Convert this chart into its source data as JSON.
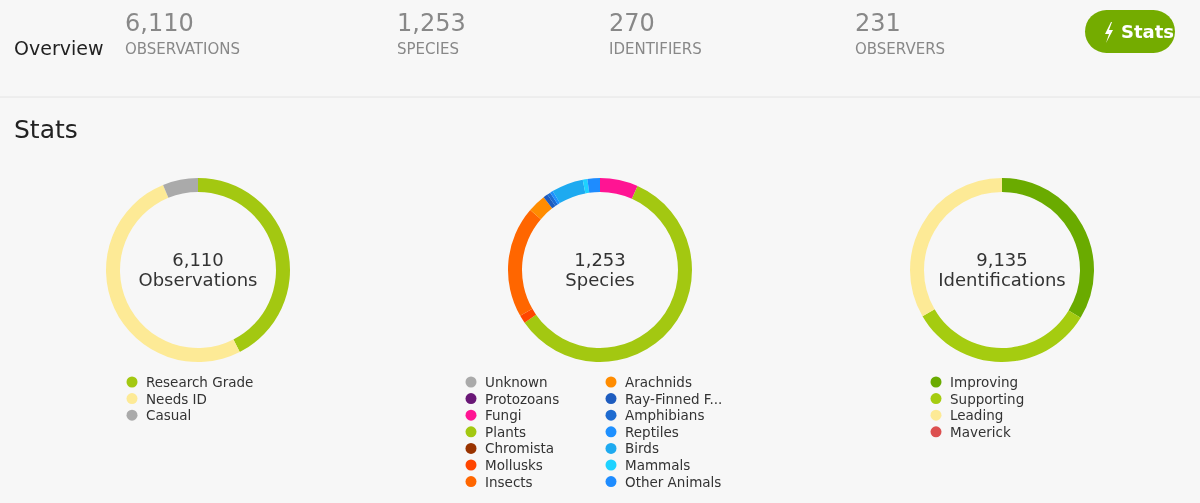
{
  "chart_data": [
    {
      "type": "other",
      "title": "Overview",
      "subtitle": "Stats",
      "annotations": [
        "6,110",
        "OBSERVATIONS",
        "1,253",
        "SPECIES",
        "270",
        "IDENTIFIERS",
        "231",
        "OBSERVERS",
        "Stats"
      ]
    },
    {
      "type": "donut",
      "title": "6,110",
      "subtitle": "Observations",
      "legend": "bottom",
      "categories": [
        "Research Grade",
        "Needs ID",
        "Casual"
      ],
      "values": [
        42.5,
        51.3,
        6.2
      ],
      "colors": [
        "#a3c811",
        "#fdea96",
        "#aaaaaa"
      ]
    },
    {
      "type": "donut",
      "title": "1,253",
      "subtitle": "Species",
      "legend": "bottom",
      "categories": [
        "Unknown",
        "Protozoans",
        "Fungi",
        "Plants",
        "Chromista",
        "Mollusks",
        "Insects",
        "Arachnids",
        "Ray-Finned F...",
        "Amphibians",
        "Reptiles",
        "Birds",
        "Mammals",
        "Other Animals"
      ],
      "values": [
        0,
        0,
        6.7,
        58.6,
        0,
        1.4,
        19.6,
        3.2,
        0.8,
        0.6,
        0.5,
        5.6,
        0.8,
        2.2
      ],
      "colors": [
        "#aaaaaa",
        "#691776",
        "#ff1493",
        "#a3c811",
        "#993300",
        "#ff4500",
        "#ff6600",
        "#ff8c00",
        "#1e5cbf",
        "#1e6bd0",
        "#1e90ff",
        "#1eaaf0",
        "#1ed2ff",
        "#1e8cff"
      ]
    },
    {
      "type": "donut",
      "title": "9,135",
      "subtitle": "Identifications",
      "legend": "bottom",
      "categories": [
        "Improving",
        "Supporting",
        "Leading",
        "Maverick"
      ],
      "values": [
        33.7,
        32.9,
        33.4,
        0
      ],
      "colors": [
        "#6aab00",
        "#a5cc10",
        "#fdea96",
        "#dc5050"
      ]
    }
  ]
}
